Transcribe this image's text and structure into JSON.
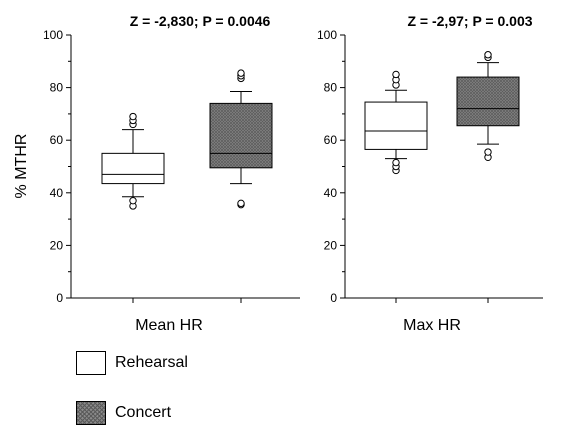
{
  "colors": {
    "rehearsal_fill": "#ffffff",
    "concert_fill": "#8a8a8a",
    "outline": "#000000"
  },
  "legend": {
    "rehearsal": "Rehearsal",
    "concert": "Concert"
  },
  "chart_data": [
    {
      "type": "box",
      "title": "Z = -2,830; P = 0.0046",
      "xlabel": "Mean HR",
      "ylabel": "% MTHR",
      "ylim": [
        0,
        100
      ],
      "yticks": [
        "0",
        "20",
        "40",
        "60",
        "80",
        "100"
      ],
      "grid": false,
      "series": [
        {
          "name": "Rehearsal",
          "q1": 43.5,
          "median": 47,
          "q3": 55,
          "whisker_low": 38.5,
          "whisker_high": 64,
          "outliers": [
            35,
            37,
            66,
            67.5,
            69
          ]
        },
        {
          "name": "Concert",
          "q1": 49.5,
          "median": 55,
          "q3": 74,
          "whisker_low": 43.5,
          "whisker_high": 78.5,
          "outliers": [
            35.5,
            36,
            83.5,
            84.5,
            85.5
          ]
        }
      ]
    },
    {
      "type": "box",
      "title": "Z = -2,97; P = 0.003",
      "xlabel": "Max HR",
      "ylabel": "",
      "ylim": [
        0,
        100
      ],
      "yticks": [
        "0",
        "20",
        "40",
        "60",
        "80",
        "100"
      ],
      "grid": false,
      "series": [
        {
          "name": "Rehearsal",
          "q1": 56.5,
          "median": 63.5,
          "q3": 74.5,
          "whisker_low": 53,
          "whisker_high": 79,
          "outliers": [
            48.5,
            50,
            51.5,
            81,
            83,
            85
          ]
        },
        {
          "name": "Concert",
          "q1": 65.5,
          "median": 72,
          "q3": 84,
          "whisker_low": 58.5,
          "whisker_high": 89.5,
          "outliers": [
            53.5,
            55.5,
            91.5,
            92.5
          ]
        }
      ]
    }
  ]
}
